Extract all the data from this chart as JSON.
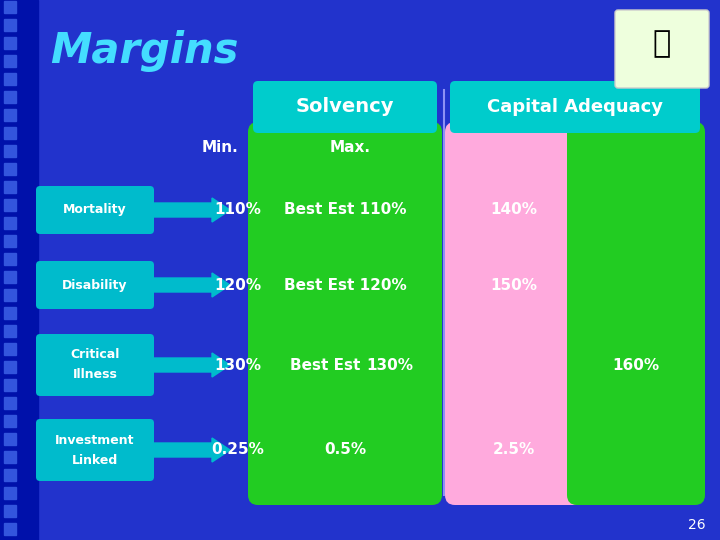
{
  "title": "Margins",
  "bg_color": "#2233cc",
  "slide_num": "26",
  "solvency_header": "Solvency",
  "capital_header": "Capital Adequacy",
  "col_min": "Min.",
  "col_max": "Max.",
  "header_cyan": "#00cccc",
  "green_color": "#22cc22",
  "pink_color": "#ffaadd",
  "white": "#ffffff",
  "left_dark": "#0011aa",
  "stripe_color": "#1122bb",
  "title_color": "#44ddff",
  "logo_bg": "#eeffdd",
  "label_box_color": "#00bbcc",
  "arrow_color": "#00bbcc",
  "divider_color": "#aaaaff",
  "rows": [
    {
      "label": "Mortality",
      "label2": null,
      "min_val": "110%",
      "max_val": "Best Est 110%",
      "max_val2": null,
      "cap_left": "140%",
      "cap_right": null
    },
    {
      "label": "Disability",
      "label2": null,
      "min_val": "120%",
      "max_val": "Best Est 120%",
      "max_val2": null,
      "cap_left": "150%",
      "cap_right": null
    },
    {
      "label": "Critical",
      "label2": "Illness",
      "min_val": "130%",
      "max_val": "Best Est",
      "max_val2": "130%",
      "cap_left": null,
      "cap_right": "160%"
    },
    {
      "label": "Investment",
      "label2": "Linked",
      "min_val": "0.25%",
      "max_val": "0.5%",
      "max_val2": null,
      "cap_left": "2.5%",
      "cap_right": null
    }
  ]
}
